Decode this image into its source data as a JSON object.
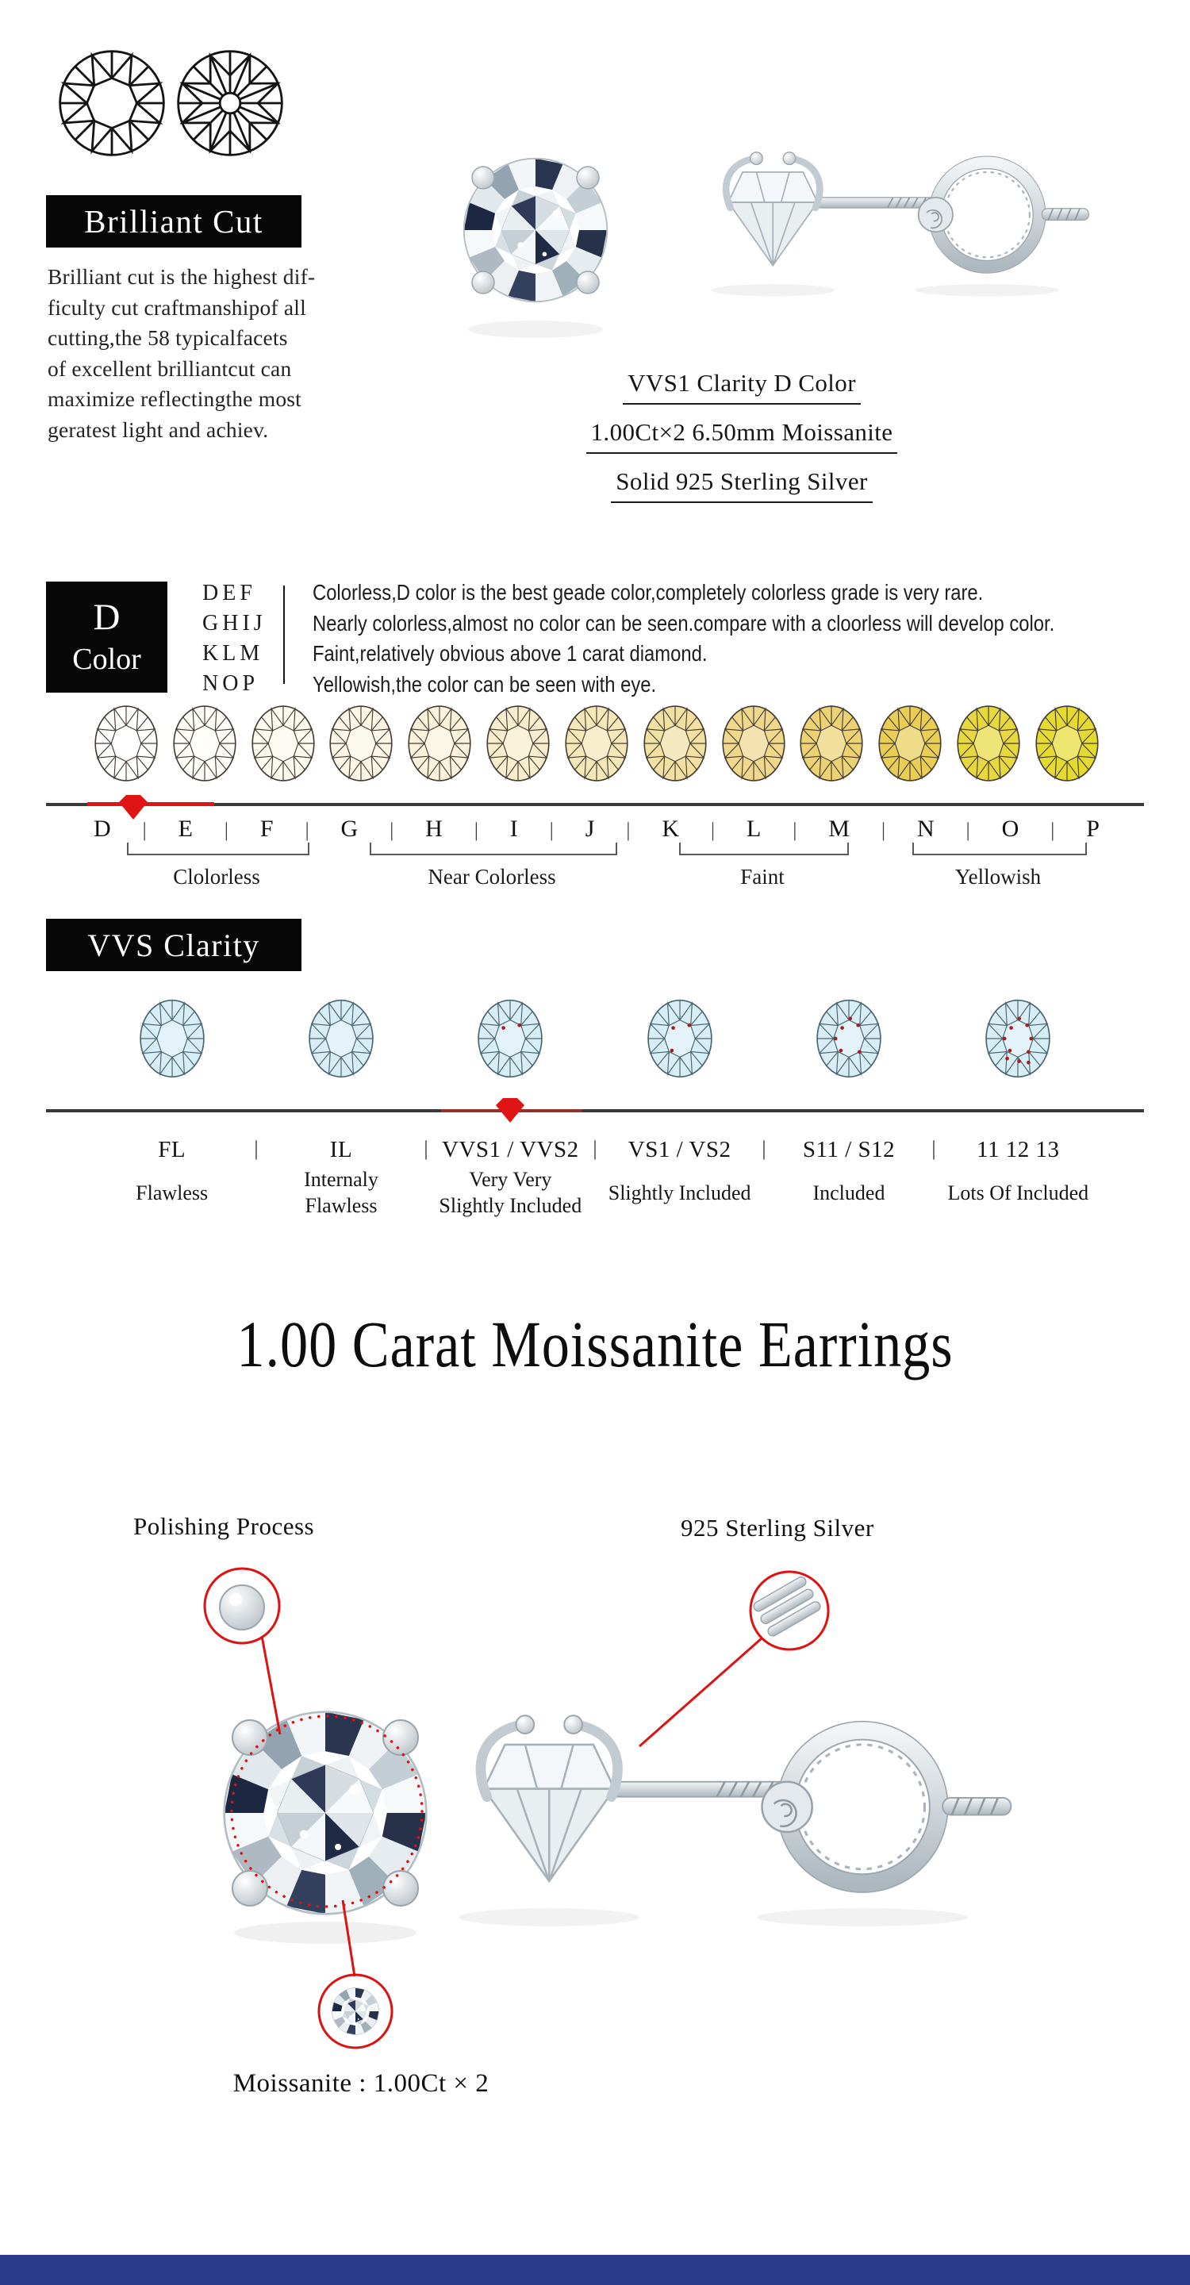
{
  "brilliant_cut": {
    "label": "Brilliant Cut",
    "lines": [
      "Brilliant cut is the highest dif-",
      "ficulty cut craftmanshipof all",
      "cutting,the 58 typicalfacets",
      "of excellent brilliantcut can",
      "maximize reflectingthe most",
      "geratest light and achiev."
    ]
  },
  "product_specs": {
    "line1": "VVS1 Clarity D Color",
    "line2": "1.00Ct×2  6.50mm Moissanite",
    "line3": "Solid 925 Sterling Silver"
  },
  "color_section": {
    "box_line1": "D",
    "box_line2": "Color",
    "grade_rows": [
      "DEF",
      "GHIJ",
      "KLM",
      "NOP"
    ],
    "descriptions": [
      "Colorless,D color is the best geade color,completely colorless grade is very rare.",
      "Nearly colorless,almost no color can be seen.compare with a cloorless will develop color.",
      "Faint,relatively obvious above 1 carat diamond.",
      "Yellowish,the color can be seen with eye."
    ],
    "scale_letters": [
      "D",
      "E",
      "F",
      "G",
      "H",
      "I",
      "J",
      "K",
      "L",
      "M",
      "N",
      "O",
      "P"
    ],
    "scale_colors": [
      "#ffffff",
      "#fffefa",
      "#fdfaf0",
      "#fbf6e6",
      "#faf2da",
      "#f8edcc",
      "#f5e7b8",
      "#f2dfa2",
      "#efd78b",
      "#ecd272",
      "#e9cd55",
      "#e7d83e",
      "#e5da2f"
    ],
    "separator": "|",
    "selected_letter": "D",
    "group_labels": [
      "Clolorless",
      "Near Colorless",
      "Faint",
      "Yellowish"
    ]
  },
  "clarity_section": {
    "label": "VVS Clarity",
    "grades": [
      "FL",
      "IL",
      "VVS1 / VVS2",
      "VS1 / VS2",
      "S11 / S12",
      "11 12 13"
    ],
    "names": [
      "Flawless",
      "Internaly\nFlawless",
      "Very Very\nSlightly Included",
      "Slightly Included",
      "Included",
      "Lots Of Included"
    ],
    "inclusions": [
      0,
      0,
      2,
      3,
      6,
      10
    ],
    "selected_grade": "VVS1 / VVS2"
  },
  "title": "1.00 Carat Moissanite Earrings",
  "annotations": {
    "left": "Polishing Process",
    "right": "925 Sterling Silver",
    "caption": "Moissanite : 1.00Ct × 2"
  },
  "colors": {
    "accent_red": "#e01414",
    "dark_red": "#93312d",
    "clarity_fill": "#d8eef6",
    "footer_blue": "#2b3b8c",
    "box_black": "#070707"
  }
}
